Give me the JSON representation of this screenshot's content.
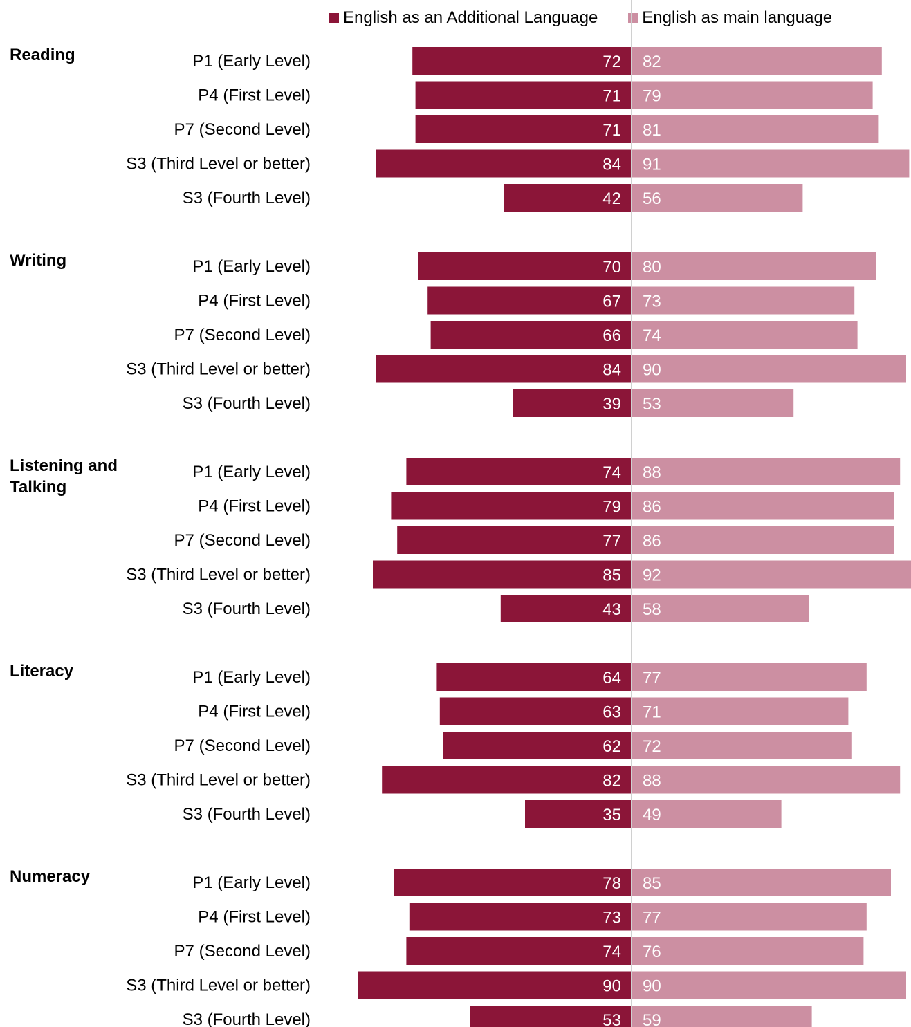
{
  "chart_data": {
    "type": "bar",
    "orientation": "horizontal-diverging",
    "legend_position": "top",
    "grid": false,
    "colors": {
      "English as an Additional Language": "#8b1538",
      "English as main language": "#cc8fa2"
    },
    "legend": [
      "English as an Additional Language",
      "English as main language"
    ],
    "groups": [
      {
        "name": "Reading",
        "categories": [
          "P1 (Early Level)",
          "P4 (First Level)",
          "P7 (Second Level)",
          "S3 (Third Level or better)",
          "S3 (Fourth Level)"
        ],
        "series": [
          {
            "name": "English as an Additional Language",
            "values": [
              72,
              71,
              71,
              84,
              42
            ]
          },
          {
            "name": "English as main language",
            "values": [
              82,
              79,
              81,
              91,
              56
            ]
          }
        ]
      },
      {
        "name": "Writing",
        "categories": [
          "P1 (Early Level)",
          "P4 (First Level)",
          "P7 (Second Level)",
          "S3 (Third Level or better)",
          "S3 (Fourth Level)"
        ],
        "series": [
          {
            "name": "English as an Additional Language",
            "values": [
              70,
              67,
              66,
              84,
              39
            ]
          },
          {
            "name": "English as main language",
            "values": [
              80,
              73,
              74,
              90,
              53
            ]
          }
        ]
      },
      {
        "name": "Listening and Talking",
        "categories": [
          "P1 (Early Level)",
          "P4 (First Level)",
          "P7 (Second Level)",
          "S3 (Third Level or better)",
          "S3 (Fourth Level)"
        ],
        "series": [
          {
            "name": "English as an Additional Language",
            "values": [
              74,
              79,
              77,
              85,
              43
            ]
          },
          {
            "name": "English as main language",
            "values": [
              88,
              86,
              86,
              92,
              58
            ]
          }
        ]
      },
      {
        "name": "Literacy",
        "categories": [
          "P1 (Early Level)",
          "P4 (First Level)",
          "P7 (Second Level)",
          "S3 (Third Level or better)",
          "S3 (Fourth Level)"
        ],
        "series": [
          {
            "name": "English as an Additional Language",
            "values": [
              64,
              63,
              62,
              82,
              35
            ]
          },
          {
            "name": "English as main language",
            "values": [
              77,
              71,
              72,
              88,
              49
            ]
          }
        ]
      },
      {
        "name": "Numeracy",
        "categories": [
          "P1 (Early Level)",
          "P4 (First Level)",
          "P7 (Second Level)",
          "S3 (Third Level or better)",
          "S3 (Fourth Level)"
        ],
        "series": [
          {
            "name": "English as an Additional Language",
            "values": [
              78,
              73,
              74,
              90,
              53
            ]
          },
          {
            "name": "English as main language",
            "values": [
              85,
              77,
              76,
              90,
              59
            ]
          }
        ]
      }
    ]
  }
}
